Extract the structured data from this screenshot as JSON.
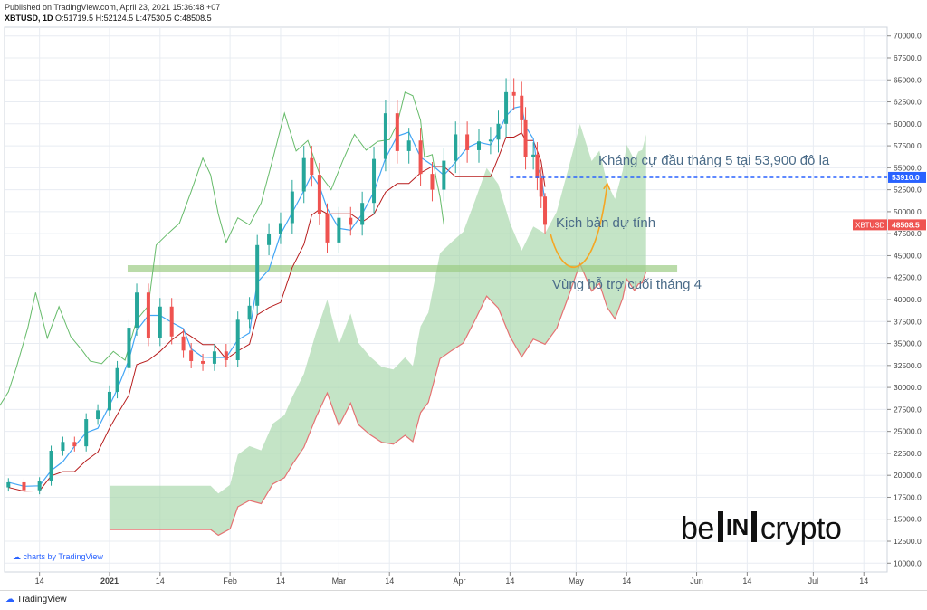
{
  "header": {
    "published": "Published on TradingView.com, April 23, 2021 15:36:48 +07",
    "symbol": "XBTUSD, 1D",
    "ohlc": "O:51719.5 H:52124.5 L:47530.5 C:48508.5"
  },
  "watermark": "charts by TradingView",
  "footer_brand": "TradingView",
  "logo": {
    "left": "be",
    "middle": "IN",
    "right": "crypto"
  },
  "annotations": {
    "resistance": "Kháng cự đầu tháng 5 tại 53,900 đô la",
    "scenario": "Kịch bản dự tính",
    "support": "Vùng hỗ trợ cuối tháng 4"
  },
  "chart_data": {
    "type": "candlestick",
    "symbol": "XBTUSD",
    "timeframe": "1D",
    "y_range": [
      9000,
      71000
    ],
    "y_ticks": [
      10000,
      12500,
      15000,
      17500,
      20000,
      22500,
      25000,
      27500,
      30000,
      32500,
      35000,
      37500,
      40000,
      42500,
      45000,
      47500,
      50000,
      52500,
      55000,
      57500,
      60000,
      62500,
      65000,
      67500,
      70000
    ],
    "x_range": [
      "2020-12-05",
      "2021-07-20"
    ],
    "x_ticks": [
      {
        "date": "2020-12-14",
        "label": "14"
      },
      {
        "date": "2021-01-01",
        "label": "2021"
      },
      {
        "date": "2021-01-14",
        "label": "14"
      },
      {
        "date": "2021-02-01",
        "label": "Feb"
      },
      {
        "date": "2021-02-14",
        "label": "14"
      },
      {
        "date": "2021-03-01",
        "label": "Mar"
      },
      {
        "date": "2021-03-14",
        "label": "14"
      },
      {
        "date": "2021-04-01",
        "label": "Apr"
      },
      {
        "date": "2021-04-14",
        "label": "14"
      },
      {
        "date": "2021-05-01",
        "label": "May"
      },
      {
        "date": "2021-05-14",
        "label": "14"
      },
      {
        "date": "2021-06-01",
        "label": "Jun"
      },
      {
        "date": "2021-06-14",
        "label": "14"
      },
      {
        "date": "2021-07-01",
        "label": "Jul"
      },
      {
        "date": "2021-07-14",
        "label": "14"
      }
    ],
    "price_labels": [
      {
        "name": "resistance",
        "value": 53910,
        "text": "53910.0",
        "color": "#2962ff"
      },
      {
        "name": "last",
        "value": 48508.5,
        "symbol": "XBTUSD",
        "text": "48508.5",
        "color": "#ef5350"
      }
    ],
    "resistance_level": 53910,
    "support_zone": {
      "value": 43500,
      "from": "2021-01-01",
      "to": "2021-05-27"
    },
    "closes": [
      {
        "date": "2020-12-06",
        "close": 19200
      },
      {
        "date": "2020-12-10",
        "close": 18300
      },
      {
        "date": "2020-12-14",
        "close": 19300
      },
      {
        "date": "2020-12-17",
        "close": 22800
      },
      {
        "date": "2020-12-20",
        "close": 23800
      },
      {
        "date": "2020-12-23",
        "close": 23300
      },
      {
        "date": "2020-12-26",
        "close": 26400
      },
      {
        "date": "2020-12-29",
        "close": 27400
      },
      {
        "date": "2021-01-01",
        "close": 29500
      },
      {
        "date": "2021-01-03",
        "close": 32200
      },
      {
        "date": "2021-01-06",
        "close": 36800
      },
      {
        "date": "2021-01-08",
        "close": 40800
      },
      {
        "date": "2021-01-11",
        "close": 35600
      },
      {
        "date": "2021-01-14",
        "close": 39200
      },
      {
        "date": "2021-01-17",
        "close": 35800
      },
      {
        "date": "2021-01-20",
        "close": 34200
      },
      {
        "date": "2021-01-22",
        "close": 33000
      },
      {
        "date": "2021-01-25",
        "close": 32700
      },
      {
        "date": "2021-01-28",
        "close": 34100
      },
      {
        "date": "2021-01-31",
        "close": 33100
      },
      {
        "date": "2021-02-03",
        "close": 37700
      },
      {
        "date": "2021-02-06",
        "close": 39300
      },
      {
        "date": "2021-02-08",
        "close": 46200
      },
      {
        "date": "2021-02-11",
        "close": 47500
      },
      {
        "date": "2021-02-14",
        "close": 48700
      },
      {
        "date": "2021-02-17",
        "close": 52300
      },
      {
        "date": "2021-02-20",
        "close": 56100
      },
      {
        "date": "2021-02-22",
        "close": 54200
      },
      {
        "date": "2021-02-24",
        "close": 49700
      },
      {
        "date": "2021-02-26",
        "close": 46500
      },
      {
        "date": "2021-03-01",
        "close": 49300
      },
      {
        "date": "2021-03-04",
        "close": 48500
      },
      {
        "date": "2021-03-07",
        "close": 51000
      },
      {
        "date": "2021-03-10",
        "close": 56000
      },
      {
        "date": "2021-03-13",
        "close": 61200
      },
      {
        "date": "2021-03-16",
        "close": 56900
      },
      {
        "date": "2021-03-19",
        "close": 58100
      },
      {
        "date": "2021-03-22",
        "close": 54300
      },
      {
        "date": "2021-03-25",
        "close": 52500
      },
      {
        "date": "2021-03-28",
        "close": 55800
      },
      {
        "date": "2021-03-31",
        "close": 58800
      },
      {
        "date": "2021-04-03",
        "close": 57000
      },
      {
        "date": "2021-04-06",
        "close": 58000
      },
      {
        "date": "2021-04-09",
        "close": 58200
      },
      {
        "date": "2021-04-11",
        "close": 60000
      },
      {
        "date": "2021-04-13",
        "close": 63600
      },
      {
        "date": "2021-04-15",
        "close": 63200
      },
      {
        "date": "2021-04-17",
        "close": 60400
      },
      {
        "date": "2021-04-18",
        "close": 56200
      },
      {
        "date": "2021-04-20",
        "close": 56500
      },
      {
        "date": "2021-04-21",
        "close": 53800
      },
      {
        "date": "2021-04-22",
        "close": 51700
      },
      {
        "date": "2021-04-23",
        "close": 48508.5
      }
    ],
    "last_candle": {
      "date": "2021-04-23",
      "open": 51719.5,
      "high": 52124.5,
      "low": 47530.5,
      "close": 48508.5
    },
    "series": [
      {
        "name": "tenkan",
        "color": "#42a5f5"
      },
      {
        "name": "kijun",
        "color": "#b71c1c"
      },
      {
        "name": "chikou",
        "color": "#66bb6a"
      },
      {
        "name": "kumo",
        "color": "#a5d6a7"
      },
      {
        "name": "senkou-b",
        "color": "#e57373"
      }
    ],
    "projection": {
      "color": "#f5a623"
    },
    "colors": {
      "up": "#26a69a",
      "down": "#ef5350",
      "grid": "#e8ecf2"
    }
  }
}
